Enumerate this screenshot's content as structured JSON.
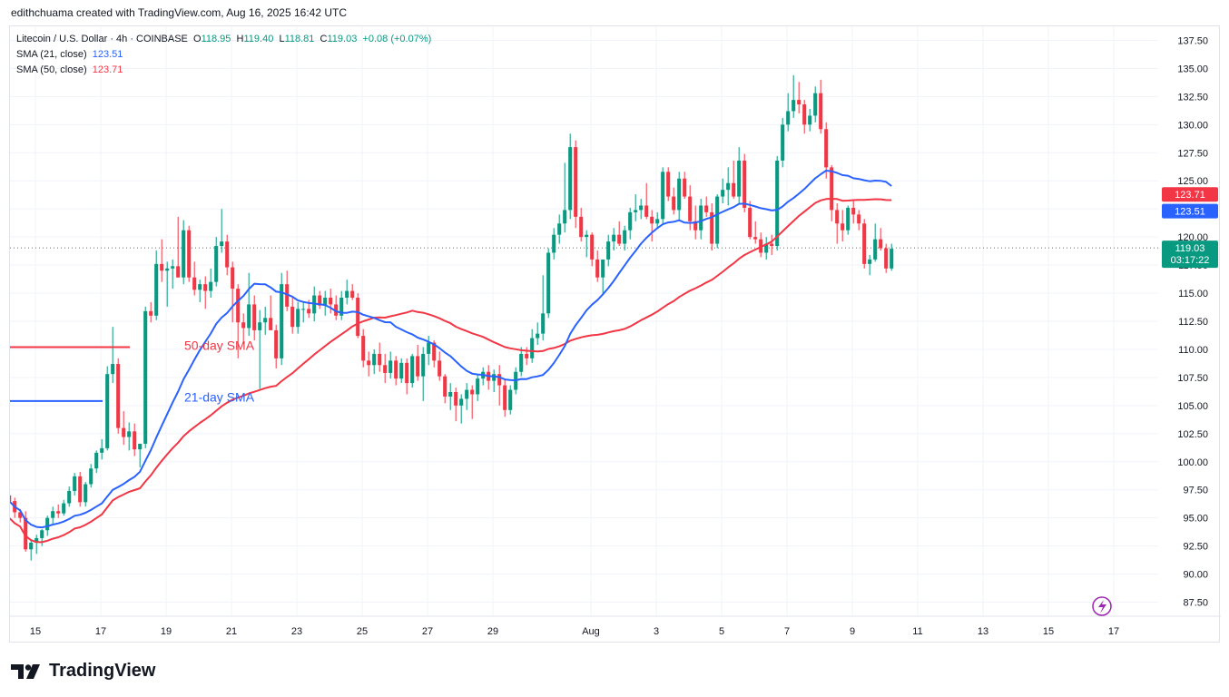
{
  "attribution": "edithchuama created with TradingView.com, Aug 16, 2025 16:42 UTC",
  "legend": {
    "symbol": "Litecoin / U.S. Dollar · 4h · COINBASE",
    "o_label": "O",
    "o": "118.95",
    "h_label": "H",
    "h": "119.40",
    "l_label": "L",
    "l": "118.81",
    "c_label": "C",
    "c": "119.03",
    "change": "+0.08 (+0.07%)",
    "sma21_label": "SMA (21, close)",
    "sma21_value": "123.51",
    "sma50_label": "SMA (50, close)",
    "sma50_value": "123.71"
  },
  "brand": {
    "name": "TradingView",
    "icon": "tradingview-logo-icon"
  },
  "footer_icon": "lightning-icon",
  "colors": {
    "up": "#089981",
    "down": "#f23645",
    "sma21": "#2962ff",
    "sma50": "#f23645",
    "grid": "#f0f3fa"
  },
  "chart_data": {
    "type": "candlestick",
    "ylim": [
      86.25,
      138.75
    ],
    "y_ticks": [
      87.5,
      90,
      92.5,
      95,
      97.5,
      100,
      102.5,
      105,
      107.5,
      110,
      112.5,
      115,
      117.5,
      120,
      122.5,
      125,
      127.5,
      130,
      132.5,
      135,
      137.5
    ],
    "y_tick_labels": [
      "87.50",
      "90.00",
      "92.50",
      "95.00",
      "97.50",
      "100.00",
      "102.50",
      "105.00",
      "107.50",
      "110.00",
      "112.50",
      "115.00",
      "117.50",
      "120.00",
      "122.50",
      "125.00",
      "127.50",
      "130.00",
      "132.50",
      "135.00",
      "137.50"
    ],
    "x_ticks": [
      {
        "label": "15",
        "day": 0
      },
      {
        "label": "17",
        "day": 2
      },
      {
        "label": "19",
        "day": 4
      },
      {
        "label": "21",
        "day": 6
      },
      {
        "label": "23",
        "day": 8
      },
      {
        "label": "25",
        "day": 10
      },
      {
        "label": "27",
        "day": 12
      },
      {
        "label": "29",
        "day": 14
      },
      {
        "label": "Aug",
        "day": 17
      },
      {
        "label": "3",
        "day": 19
      },
      {
        "label": "5",
        "day": 21
      },
      {
        "label": "7",
        "day": 23
      },
      {
        "label": "9",
        "day": 25
      },
      {
        "label": "11",
        "day": 27
      },
      {
        "label": "13",
        "day": 29
      },
      {
        "label": "15",
        "day": 31
      },
      {
        "label": "17",
        "day": 33
      }
    ],
    "candles_per_day": 6,
    "first_candle_day": -0.8,
    "ohlc": [
      [
        97.0,
        97.3,
        96.0,
        96.5
      ],
      [
        96.5,
        96.8,
        95.0,
        95.5
      ],
      [
        95.5,
        95.8,
        94.6,
        95.0
      ],
      [
        95.0,
        95.6,
        92.0,
        92.2
      ],
      [
        92.2,
        93.0,
        91.2,
        92.8
      ],
      [
        92.8,
        93.5,
        91.8,
        93.2
      ],
      [
        93.2,
        94.0,
        92.5,
        93.9
      ],
      [
        93.9,
        95.2,
        93.4,
        95.0
      ],
      [
        95.0,
        96.0,
        94.5,
        95.6
      ],
      [
        95.6,
        96.2,
        95.0,
        95.4
      ],
      [
        95.4,
        96.6,
        95.2,
        96.3
      ],
      [
        96.3,
        97.8,
        96.0,
        97.4
      ],
      [
        97.4,
        99.0,
        97.0,
        98.7
      ],
      [
        98.7,
        99.1,
        96.0,
        96.4
      ],
      [
        96.4,
        98.2,
        96.0,
        98.0
      ],
      [
        98.0,
        99.8,
        97.7,
        99.4
      ],
      [
        99.4,
        101.0,
        99.0,
        100.8
      ],
      [
        100.8,
        102.0,
        100.2,
        101.2
      ],
      [
        101.2,
        108.5,
        101.0,
        107.8
      ],
      [
        107.8,
        112.0,
        107.0,
        108.7
      ],
      [
        108.7,
        109.2,
        102.5,
        103.0
      ],
      [
        103.0,
        104.5,
        101.5,
        102.2
      ],
      [
        102.2,
        103.5,
        101.0,
        102.7
      ],
      [
        102.7,
        103.4,
        100.5,
        101.1
      ],
      [
        101.1,
        101.6,
        99.5,
        101.6
      ],
      [
        101.6,
        113.8,
        101.2,
        113.4
      ],
      [
        113.4,
        114.2,
        112.4,
        113.0
      ],
      [
        113.0,
        118.8,
        112.6,
        117.6
      ],
      [
        117.6,
        119.8,
        116.0,
        117.0
      ],
      [
        117.0,
        117.8,
        113.8,
        117.2
      ],
      [
        117.2,
        118.0,
        115.4,
        117.4
      ],
      [
        117.4,
        121.8,
        116.4,
        116.4
      ],
      [
        116.4,
        121.5,
        115.8,
        120.6
      ],
      [
        120.6,
        121.0,
        116.0,
        116.4
      ],
      [
        116.4,
        117.8,
        114.8,
        115.3
      ],
      [
        115.3,
        116.2,
        114.2,
        115.8
      ],
      [
        115.8,
        116.5,
        113.6,
        115.2
      ],
      [
        115.2,
        117.2,
        114.6,
        116.0
      ],
      [
        116.0,
        120.0,
        115.6,
        119.2
      ],
      [
        119.2,
        122.5,
        118.6,
        119.6
      ],
      [
        119.6,
        120.2,
        116.6,
        117.3
      ],
      [
        117.3,
        117.8,
        112.4,
        115.4
      ],
      [
        115.4,
        115.8,
        109.2,
        112.4
      ],
      [
        112.4,
        113.2,
        110.5,
        111.9
      ],
      [
        111.9,
        116.8,
        111.2,
        114.0
      ],
      [
        114.0,
        114.8,
        110.8,
        111.7
      ],
      [
        111.7,
        113.5,
        106.5,
        112.4
      ],
      [
        112.4,
        113.8,
        111.3,
        112.8
      ],
      [
        112.8,
        114.8,
        111.8,
        111.7
      ],
      [
        111.7,
        112.2,
        108.3,
        109.2
      ],
      [
        109.2,
        116.8,
        108.6,
        115.8
      ],
      [
        115.8,
        117.0,
        113.4,
        113.8
      ],
      [
        113.8,
        114.6,
        111.4,
        112.0
      ],
      [
        112.0,
        114.2,
        111.4,
        113.6
      ],
      [
        113.6,
        114.2,
        112.4,
        113.6
      ],
      [
        113.6,
        114.4,
        112.8,
        113.2
      ],
      [
        113.2,
        115.6,
        112.5,
        114.8
      ],
      [
        114.8,
        115.2,
        113.6,
        113.9
      ],
      [
        113.9,
        115.2,
        113.0,
        114.6
      ],
      [
        114.6,
        115.4,
        113.2,
        114.0
      ],
      [
        114.0,
        114.8,
        112.6,
        113.0
      ],
      [
        113.0,
        115.2,
        112.6,
        114.6
      ],
      [
        114.6,
        116.2,
        114.0,
        115.2
      ],
      [
        115.2,
        115.8,
        114.4,
        114.6
      ],
      [
        114.6,
        115.0,
        111.0,
        111.2
      ],
      [
        111.2,
        111.8,
        108.4,
        109.0
      ],
      [
        109.0,
        109.8,
        107.6,
        108.6
      ],
      [
        108.6,
        110.0,
        107.8,
        109.6
      ],
      [
        109.6,
        110.6,
        108.0,
        108.6
      ],
      [
        108.6,
        109.6,
        107.0,
        107.9
      ],
      [
        107.9,
        109.8,
        107.4,
        109.0
      ],
      [
        109.0,
        109.4,
        106.8,
        107.4
      ],
      [
        107.4,
        109.2,
        107.0,
        108.8
      ],
      [
        108.8,
        109.2,
        106.0,
        107.0
      ],
      [
        107.0,
        109.6,
        106.6,
        109.4
      ],
      [
        109.4,
        110.4,
        107.2,
        107.6
      ],
      [
        107.6,
        110.2,
        105.4,
        109.6
      ],
      [
        109.6,
        111.2,
        108.6,
        110.6
      ],
      [
        110.6,
        110.8,
        108.4,
        109.0
      ],
      [
        109.0,
        109.8,
        107.2,
        107.6
      ],
      [
        107.6,
        107.8,
        105.2,
        105.8
      ],
      [
        105.8,
        107.0,
        104.6,
        106.2
      ],
      [
        106.2,
        106.6,
        103.6,
        105.0
      ],
      [
        105.0,
        106.0,
        103.4,
        105.6
      ],
      [
        105.6,
        107.0,
        104.6,
        106.4
      ],
      [
        106.4,
        106.8,
        103.8,
        106.0
      ],
      [
        106.0,
        107.8,
        105.4,
        107.4
      ],
      [
        107.4,
        108.4,
        106.8,
        108.0
      ],
      [
        108.0,
        108.6,
        106.4,
        107.2
      ],
      [
        107.2,
        108.2,
        106.2,
        107.8
      ],
      [
        107.8,
        108.6,
        105.0,
        106.8
      ],
      [
        106.8,
        107.4,
        104.0,
        104.6
      ],
      [
        104.6,
        106.8,
        104.2,
        106.4
      ],
      [
        106.4,
        108.4,
        106.0,
        108.0
      ],
      [
        108.0,
        110.2,
        107.6,
        109.6
      ],
      [
        109.6,
        110.2,
        108.6,
        109.2
      ],
      [
        109.2,
        111.8,
        108.8,
        111.0
      ],
      [
        111.0,
        112.4,
        110.4,
        111.4
      ],
      [
        111.4,
        116.6,
        110.8,
        113.2
      ],
      [
        113.2,
        119.0,
        112.8,
        118.6
      ],
      [
        118.6,
        120.8,
        118.0,
        120.2
      ],
      [
        120.2,
        122.0,
        119.4,
        121.2
      ],
      [
        121.2,
        126.6,
        120.4,
        122.4
      ],
      [
        122.4,
        129.2,
        121.6,
        128.0
      ],
      [
        128.0,
        128.6,
        120.8,
        121.8
      ],
      [
        121.8,
        122.6,
        119.6,
        120.0
      ],
      [
        120.0,
        120.6,
        118.2,
        120.2
      ],
      [
        120.2,
        120.4,
        117.4,
        118.0
      ],
      [
        118.0,
        118.8,
        116.0,
        116.4
      ],
      [
        116.4,
        117.8,
        114.8,
        118.0
      ],
      [
        118.0,
        120.2,
        117.4,
        119.6
      ],
      [
        119.6,
        120.8,
        118.8,
        120.2
      ],
      [
        120.2,
        121.4,
        119.2,
        119.4
      ],
      [
        119.4,
        121.0,
        118.8,
        120.6
      ],
      [
        120.6,
        122.6,
        119.8,
        122.2
      ],
      [
        122.2,
        123.8,
        121.4,
        122.4
      ],
      [
        122.4,
        123.4,
        121.6,
        122.8
      ],
      [
        122.8,
        124.8,
        121.6,
        121.8
      ],
      [
        121.8,
        122.4,
        119.6,
        121.2
      ],
      [
        121.2,
        122.2,
        120.8,
        121.6
      ],
      [
        121.6,
        126.2,
        121.2,
        125.8
      ],
      [
        125.8,
        126.2,
        123.2,
        123.6
      ],
      [
        123.6,
        124.4,
        122.0,
        122.4
      ],
      [
        122.4,
        125.8,
        121.4,
        125.2
      ],
      [
        125.2,
        125.8,
        123.4,
        123.6
      ],
      [
        123.6,
        124.6,
        120.6,
        121.4
      ],
      [
        121.4,
        122.8,
        119.8,
        120.6
      ],
      [
        120.6,
        123.4,
        119.8,
        122.8
      ],
      [
        122.8,
        123.6,
        121.8,
        122.2
      ],
      [
        122.2,
        123.0,
        118.8,
        119.4
      ],
      [
        119.4,
        123.8,
        119.0,
        123.6
      ],
      [
        123.6,
        125.2,
        123.0,
        124.2
      ],
      [
        124.2,
        126.2,
        122.8,
        124.8
      ],
      [
        124.8,
        126.8,
        123.4,
        123.6
      ],
      [
        123.6,
        128.0,
        123.0,
        126.8
      ],
      [
        126.8,
        127.4,
        122.2,
        122.6
      ],
      [
        122.6,
        123.2,
        119.8,
        120.0
      ],
      [
        120.0,
        121.4,
        119.4,
        119.8
      ],
      [
        119.8,
        120.4,
        118.2,
        118.6
      ],
      [
        118.6,
        120.0,
        118.0,
        119.4
      ],
      [
        119.4,
        120.2,
        118.4,
        119.2
      ],
      [
        119.2,
        127.2,
        118.8,
        126.8
      ],
      [
        126.8,
        130.6,
        126.2,
        130.0
      ],
      [
        130.0,
        132.8,
        129.4,
        131.2
      ],
      [
        131.2,
        134.4,
        130.6,
        132.2
      ],
      [
        132.2,
        133.8,
        131.0,
        131.8
      ],
      [
        131.8,
        132.2,
        129.2,
        130.0
      ],
      [
        130.0,
        131.4,
        129.4,
        130.8
      ],
      [
        130.8,
        133.4,
        130.2,
        132.8
      ],
      [
        132.8,
        134.0,
        129.2,
        129.6
      ],
      [
        129.6,
        130.2,
        125.2,
        126.2
      ],
      [
        126.2,
        126.4,
        121.4,
        122.4
      ],
      [
        122.4,
        123.0,
        119.4,
        121.2
      ],
      [
        121.2,
        122.4,
        119.6,
        120.6
      ],
      [
        120.6,
        122.8,
        120.2,
        122.6
      ],
      [
        122.6,
        123.2,
        121.2,
        122.0
      ],
      [
        122.0,
        122.4,
        120.6,
        121.2
      ],
      [
        121.2,
        121.6,
        117.2,
        117.6
      ],
      [
        117.6,
        118.4,
        116.6,
        118.0
      ],
      [
        118.0,
        121.2,
        117.8,
        119.8
      ],
      [
        119.8,
        120.8,
        118.8,
        119.0
      ],
      [
        119.0,
        119.4,
        116.8,
        117.2
      ],
      [
        117.2,
        119.4,
        117.0,
        118.95
      ]
    ],
    "series": [
      {
        "name": "SMA (21, close)",
        "color": "#2962ff",
        "period": 21
      },
      {
        "name": "SMA (50, close)",
        "color": "#f23645",
        "period": 50
      }
    ],
    "last_price": "119.03",
    "countdown": "03:17:22",
    "sma21_badge": "123.51",
    "sma50_badge": "123.71",
    "annotations": {
      "sma50_text": "50-day SMA",
      "sma21_text": "21-day SMA"
    }
  }
}
